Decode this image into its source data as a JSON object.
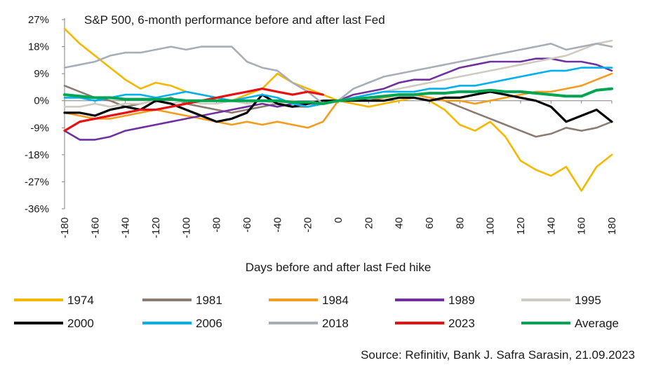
{
  "chart_data": {
    "type": "line",
    "title": "S&P 500, 6-month performance before and after last Fed",
    "xlabel": "Days before and after last Fed hike",
    "ylabel": "",
    "source": "Source: Refinitiv, Bank J. Safra Sarasin, 21.09.2023",
    "xlim": [
      -180,
      180
    ],
    "ylim": [
      -36,
      27
    ],
    "x_ticks": [
      "-180",
      "-160",
      "-140",
      "-120",
      "-100",
      "-80",
      "-60",
      "-40",
      "-20",
      "0",
      "20",
      "40",
      "60",
      "80",
      "100",
      "120",
      "140",
      "160",
      "180"
    ],
    "y_ticks": [
      {
        "value": 27,
        "label": "27%"
      },
      {
        "value": 18,
        "label": "18%"
      },
      {
        "value": 9,
        "label": "9%"
      },
      {
        "value": 0,
        "label": "0%"
      },
      {
        "value": -9,
        "label": "-9%"
      },
      {
        "value": -18,
        "label": "-18%"
      },
      {
        "value": -27,
        "label": "-27%"
      },
      {
        "value": -36,
        "label": "-36%"
      }
    ],
    "grid": false,
    "legend_position": "bottom",
    "series": [
      {
        "name": "1974",
        "color": "#F5B800",
        "x": [
          -180,
          -170,
          -160,
          -150,
          -140,
          -130,
          -120,
          -110,
          -100,
          -90,
          -80,
          -70,
          -60,
          -50,
          -40,
          -30,
          -20,
          -10,
          0,
          10,
          20,
          30,
          40,
          50,
          60,
          70,
          80,
          90,
          100,
          110,
          120,
          130,
          140,
          150,
          160,
          170,
          180
        ],
        "y": [
          24,
          19,
          15,
          11,
          7,
          4,
          6,
          5,
          3,
          2,
          1,
          0,
          2,
          4,
          9,
          6,
          4,
          2,
          0,
          -1,
          -2,
          -1,
          0,
          1,
          0,
          -3,
          -8,
          -10,
          -7,
          -12,
          -20,
          -23,
          -25,
          -22,
          -30,
          -22,
          -18
        ]
      },
      {
        "name": "1981",
        "color": "#8C7B70",
        "x": [
          -180,
          -170,
          -160,
          -150,
          -140,
          -130,
          -120,
          -110,
          -100,
          -90,
          -80,
          -70,
          -60,
          -50,
          -40,
          -30,
          -20,
          -10,
          0,
          10,
          20,
          30,
          40,
          50,
          60,
          70,
          80,
          90,
          100,
          110,
          120,
          130,
          140,
          150,
          160,
          170,
          180
        ],
        "y": [
          5,
          3,
          1,
          0,
          -2,
          -1,
          0,
          1,
          -1,
          -2,
          -3,
          -4,
          -3,
          -2,
          -1,
          -2,
          -2,
          -1,
          0,
          1,
          0,
          1,
          2,
          2,
          1,
          0,
          -2,
          -4,
          -6,
          -8,
          -10,
          -12,
          -11,
          -9,
          -10,
          -9,
          -7
        ]
      },
      {
        "name": "1984",
        "color": "#F39C1F",
        "x": [
          -180,
          -170,
          -160,
          -150,
          -140,
          -130,
          -120,
          -110,
          -100,
          -90,
          -80,
          -70,
          -60,
          -50,
          -40,
          -30,
          -20,
          -10,
          0,
          10,
          20,
          30,
          40,
          50,
          60,
          70,
          80,
          90,
          100,
          110,
          120,
          130,
          140,
          150,
          160,
          170,
          180
        ],
        "y": [
          -4,
          -5,
          -6,
          -6,
          -5,
          -4,
          -3,
          -4,
          -5,
          -6,
          -7,
          -8,
          -7,
          -8,
          -7,
          -8,
          -9,
          -7,
          0,
          0,
          1,
          1,
          2,
          2,
          1,
          0,
          0,
          -1,
          0,
          1,
          2,
          3,
          3,
          4,
          5,
          7,
          9
        ]
      },
      {
        "name": "1989",
        "color": "#7030A0",
        "x": [
          -180,
          -170,
          -160,
          -150,
          -140,
          -130,
          -120,
          -110,
          -100,
          -90,
          -80,
          -70,
          -60,
          -50,
          -40,
          -30,
          -20,
          -10,
          0,
          10,
          20,
          30,
          40,
          50,
          60,
          70,
          80,
          90,
          100,
          110,
          120,
          130,
          140,
          150,
          160,
          170,
          180
        ],
        "y": [
          -10,
          -13,
          -13,
          -12,
          -10,
          -9,
          -8,
          -7,
          -6,
          -5,
          -4,
          -3,
          -2,
          -1,
          -2,
          -1,
          -1,
          -1,
          0,
          2,
          3,
          4,
          6,
          7,
          7,
          9,
          11,
          12,
          13,
          13,
          13,
          14,
          14,
          13,
          13,
          12,
          10
        ]
      },
      {
        "name": "1995",
        "color": "#D0CBC0",
        "x": [
          -180,
          -170,
          -160,
          -150,
          -140,
          -130,
          -120,
          -110,
          -100,
          -90,
          -80,
          -70,
          -60,
          -50,
          -40,
          -30,
          -20,
          -10,
          0,
          10,
          20,
          30,
          40,
          50,
          60,
          70,
          80,
          90,
          100,
          110,
          120,
          130,
          140,
          150,
          160,
          170,
          180
        ],
        "y": [
          -2,
          -2,
          -1,
          -2,
          -1,
          -1,
          0,
          -1,
          0,
          -1,
          -1,
          0,
          -1,
          0,
          -1,
          0,
          -1,
          0,
          0,
          1,
          2,
          3,
          4,
          5,
          6,
          7,
          8,
          9,
          10,
          11,
          12,
          13,
          14,
          15,
          17,
          19,
          20
        ]
      },
      {
        "name": "2000",
        "color": "#000000",
        "x": [
          -180,
          -170,
          -160,
          -150,
          -140,
          -130,
          -120,
          -110,
          -100,
          -90,
          -80,
          -70,
          -60,
          -50,
          -40,
          -30,
          -20,
          -10,
          0,
          10,
          20,
          30,
          40,
          50,
          60,
          70,
          80,
          90,
          100,
          110,
          120,
          130,
          140,
          150,
          160,
          170,
          180
        ],
        "y": [
          -4,
          -4,
          -5,
          -3,
          -2,
          -3,
          0,
          -1,
          -3,
          -5,
          -7,
          -6,
          -4,
          2,
          -1,
          -2,
          -1,
          0,
          0,
          0,
          0,
          0,
          1,
          1,
          0,
          1,
          1,
          2,
          3,
          2,
          1,
          0,
          -2,
          -7,
          -5,
          -3,
          -7
        ]
      },
      {
        "name": "2006",
        "color": "#00B0F0",
        "x": [
          -180,
          -170,
          -160,
          -150,
          -140,
          -130,
          -120,
          -110,
          -100,
          -90,
          -80,
          -70,
          -60,
          -50,
          -40,
          -30,
          -20,
          -10,
          0,
          10,
          20,
          30,
          40,
          50,
          60,
          70,
          80,
          90,
          100,
          110,
          120,
          130,
          140,
          150,
          160,
          170,
          180
        ],
        "y": [
          1,
          1,
          0,
          1,
          2,
          2,
          1,
          2,
          3,
          2,
          1,
          0,
          1,
          2,
          1,
          -1,
          -2,
          -1,
          0,
          1,
          2,
          3,
          3,
          3,
          4,
          4,
          5,
          5,
          6,
          7,
          8,
          9,
          10,
          10,
          11,
          11,
          11
        ]
      },
      {
        "name": "2018",
        "color": "#A8AEB8",
        "x": [
          -180,
          -170,
          -160,
          -150,
          -140,
          -130,
          -120,
          -110,
          -100,
          -90,
          -80,
          -70,
          -60,
          -50,
          -40,
          -30,
          -20,
          -10,
          0,
          10,
          20,
          30,
          40,
          50,
          60,
          70,
          80,
          90,
          100,
          110,
          120,
          130,
          140,
          150,
          160,
          170,
          180
        ],
        "y": [
          11,
          12,
          13,
          15,
          16,
          16,
          17,
          18,
          17,
          18,
          18,
          18,
          13,
          11,
          10,
          6,
          3,
          -1,
          0,
          4,
          6,
          8,
          9,
          10,
          11,
          12,
          13,
          14,
          15,
          16,
          17,
          18,
          19,
          17,
          18,
          19,
          18
        ]
      },
      {
        "name": "2023",
        "color": "#E81010",
        "x": [
          -180,
          -170,
          -160,
          -150,
          -140,
          -130,
          -120,
          -110,
          -100,
          -90,
          -80,
          -70,
          -60,
          -50,
          -40,
          -30,
          -20,
          -10
        ],
        "y": [
          -10,
          -7,
          -6,
          -5,
          -4,
          -3,
          -3,
          -2,
          -1,
          0,
          1,
          2,
          3,
          4,
          3,
          2,
          3,
          2
        ]
      },
      {
        "name": "Average",
        "color": "#00A651",
        "x": [
          -180,
          -170,
          -160,
          -150,
          -140,
          -130,
          -120,
          -110,
          -100,
          -90,
          -80,
          -70,
          -60,
          -50,
          -40,
          -30,
          -20,
          -10,
          0,
          10,
          20,
          30,
          40,
          50,
          60,
          70,
          80,
          90,
          100,
          110,
          120,
          130,
          140,
          150,
          160,
          170,
          180
        ],
        "y": [
          2,
          1.5,
          1,
          1,
          0.5,
          0.5,
          0.5,
          0.5,
          0,
          0,
          0,
          0,
          0,
          0,
          0,
          -0.5,
          -0.5,
          -1,
          0,
          0.5,
          1,
          1.5,
          2,
          2,
          2.5,
          2.5,
          3,
          3,
          3.5,
          3,
          3,
          2.5,
          2,
          1.5,
          1.5,
          3.5,
          4
        ]
      }
    ]
  }
}
